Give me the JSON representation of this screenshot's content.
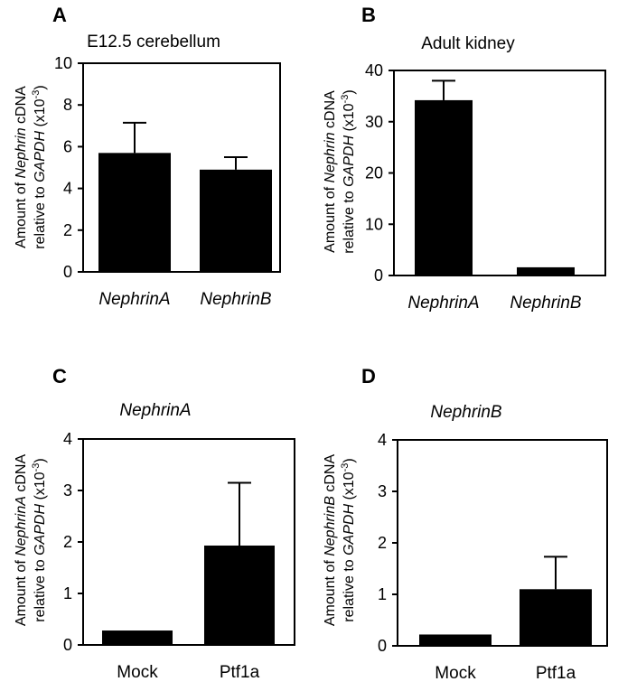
{
  "chart_data": [
    {
      "panel": "A",
      "type": "bar",
      "title": "E12.5 cerebellum",
      "title_italic": false,
      "categories": [
        "NephrinA",
        "NephrinB"
      ],
      "categories_italic": true,
      "values": [
        5.7,
        4.9
      ],
      "errors": [
        1.45,
        0.6
      ],
      "ylim": [
        0,
        10
      ],
      "yticks": [
        0,
        2,
        4,
        6,
        8,
        10
      ],
      "ylabel_line1": [
        "Amount of ",
        "Nephrin",
        " cDNA"
      ],
      "ylabel_line2": [
        "relative to ",
        "GAPDH",
        " (x10",
        "-3",
        ")"
      ]
    },
    {
      "panel": "B",
      "type": "bar",
      "title": "Adult kidney",
      "title_italic": false,
      "categories": [
        "NephrinA",
        "NephrinB"
      ],
      "categories_italic": true,
      "values": [
        34.2,
        1.6
      ],
      "errors": [
        3.8,
        0
      ],
      "ylim": [
        0,
        40
      ],
      "yticks": [
        0,
        10,
        20,
        30,
        40
      ],
      "ylabel_line1": [
        "Amount of ",
        "Nephrin",
        " cDNA"
      ],
      "ylabel_line2": [
        "relative to ",
        "GAPDH",
        " (x10",
        "-3",
        ")"
      ]
    },
    {
      "panel": "C",
      "type": "bar",
      "title": "NephrinA",
      "title_italic": true,
      "categories": [
        "Mock",
        "Ptf1a"
      ],
      "categories_italic": false,
      "values": [
        0.28,
        1.93
      ],
      "errors": [
        0,
        1.22
      ],
      "ylim": [
        0,
        4
      ],
      "yticks": [
        0,
        1,
        2,
        3,
        4
      ],
      "ylabel_line1": [
        "Amount of ",
        "NephrinA",
        " cDNA"
      ],
      "ylabel_line2": [
        "relative to ",
        "GAPDH",
        " (x10",
        "-3",
        ")"
      ]
    },
    {
      "panel": "D",
      "type": "bar",
      "title": "NephrinB",
      "title_italic": true,
      "categories": [
        "Mock",
        "Ptf1a"
      ],
      "categories_italic": false,
      "values": [
        0.22,
        1.1
      ],
      "errors": [
        0,
        0.63
      ],
      "ylim": [
        0,
        4
      ],
      "yticks": [
        0,
        1,
        2,
        3,
        4
      ],
      "ylabel_line1": [
        "Amount of ",
        "NephrinB",
        " cDNA"
      ],
      "ylabel_line2": [
        "relative to ",
        "GAPDH",
        " (x10",
        "-3",
        ")"
      ]
    }
  ]
}
